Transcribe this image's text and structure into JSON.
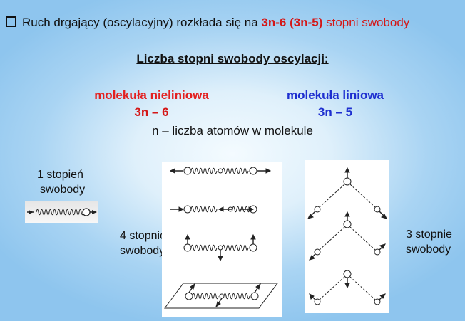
{
  "headline": {
    "text_before": "Ruch drgający (oscylacyjny) rozkłada się na ",
    "highlight": "3n-6 (3n-5)",
    "text_after": " stopni swobody"
  },
  "subtitle": "Liczba stopni swobody oscylacji:",
  "nonlinear": {
    "label": "molekuła nieliniowa",
    "formula": "3n – 6"
  },
  "linear": {
    "label": "molekuła liniowa",
    "formula": "3n – 5"
  },
  "note": "n – liczba atomów w molekule",
  "diatomic_caption": {
    "line1": "1 stopień",
    "line2": "swobody"
  },
  "linear_caption": {
    "line1": "4 stopnie",
    "line2": "swobody"
  },
  "bent_caption": {
    "line1": "3 stopnie",
    "line2": "swobody"
  },
  "colors": {
    "red": "#d41717",
    "blue": "#1e2fd0",
    "background": "#a9d4f3"
  }
}
